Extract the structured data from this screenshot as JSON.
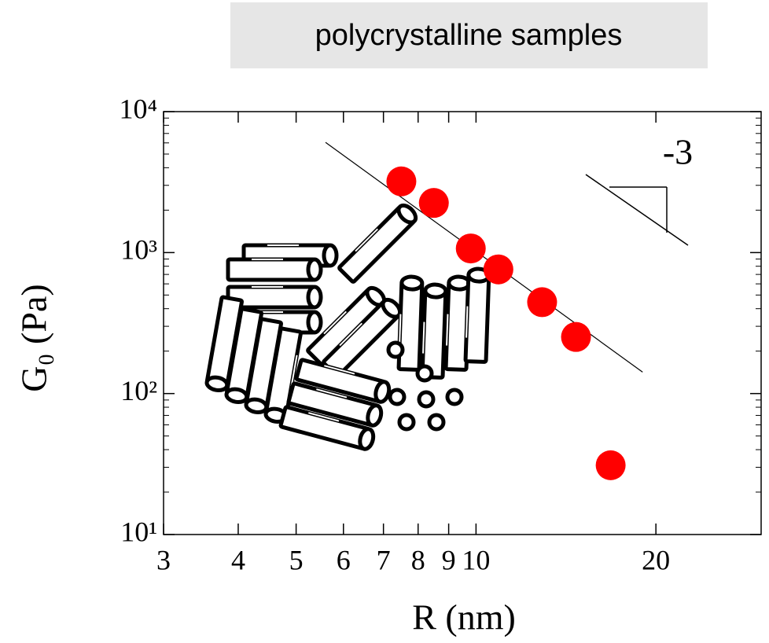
{
  "chart_data": {
    "type": "scatter",
    "title": "polycrystalline samples",
    "x_label": "R (nm)",
    "y_label": "G₀ (Pa)",
    "x": [
      7.5,
      8.5,
      9.8,
      10.9,
      12.9,
      14.7,
      16.8
    ],
    "values": [
      3200,
      2250,
      1070,
      760,
      445,
      252,
      31
    ],
    "color": "#ff0000",
    "log_x": true,
    "log_y": true,
    "xlim": [
      3,
      30
    ],
    "ylim": [
      10,
      10000
    ],
    "xticks": [
      3,
      4,
      5,
      6,
      7,
      8,
      9,
      10,
      20
    ],
    "yticks": [
      {
        "value": 10,
        "label": "10¹"
      },
      {
        "value": 100,
        "label": "10²"
      },
      {
        "value": 1000,
        "label": "10³"
      },
      {
        "value": 10000,
        "label": "10⁴"
      }
    ],
    "yminorticks": [
      20,
      30,
      40,
      50,
      60,
      70,
      80,
      90,
      200,
      300,
      400,
      500,
      600,
      700,
      800,
      900,
      2000,
      3000,
      4000,
      5000,
      6000,
      7000,
      8000,
      9000
    ],
    "fit_line": {
      "x": [
        5.6,
        19.0
      ],
      "y": [
        6050,
        142
      ]
    },
    "slope_label": "-3"
  }
}
